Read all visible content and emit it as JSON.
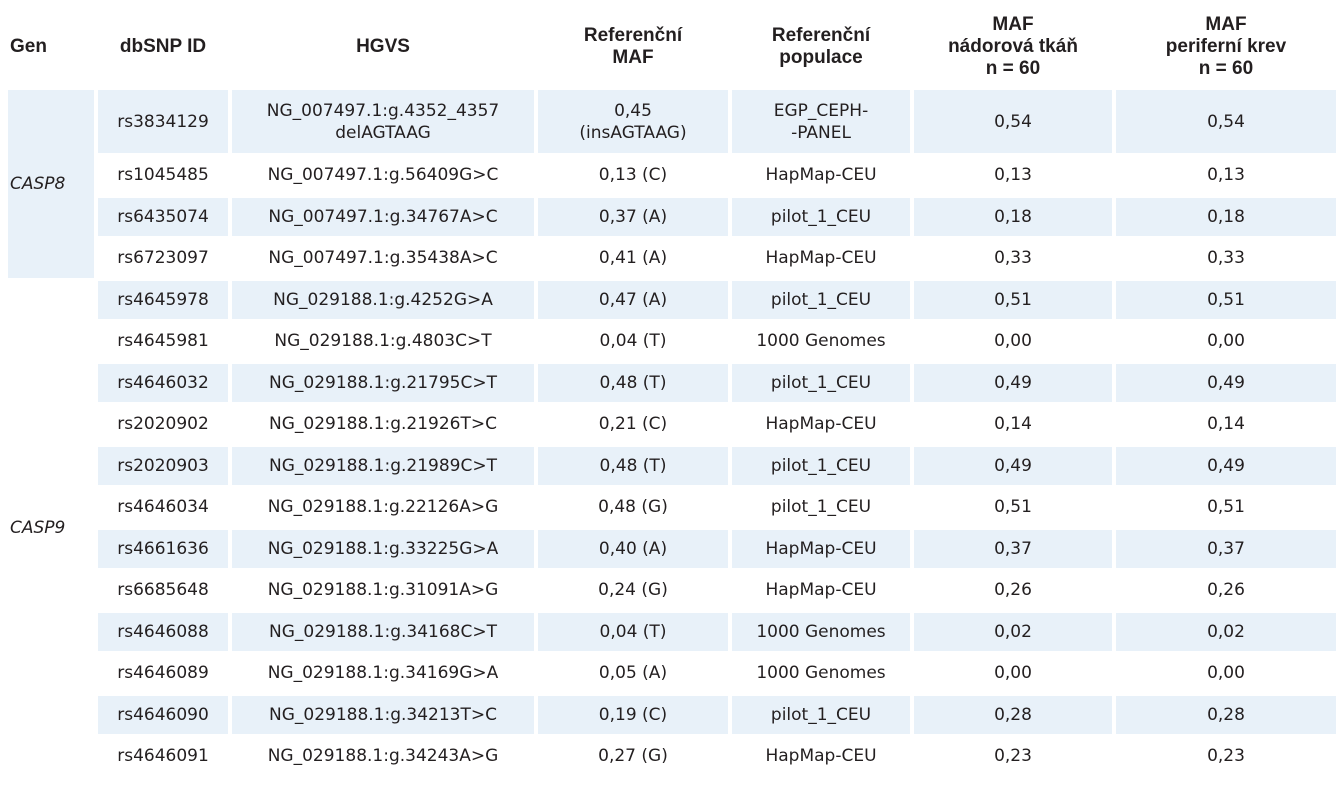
{
  "table": {
    "headers": {
      "gen": "Gen",
      "dbsnp": "dbSNP ID",
      "hgvs": "HGVS",
      "ref_maf": "Referenční\nMAF",
      "ref_pop": "Referenční\npopulace",
      "maf_tumor": "MAF\nnádorová tkáň\nn = 60",
      "maf_blood": "MAF\nperiferní krev\nn = 60"
    },
    "genes": [
      {
        "name": "CASP8",
        "rows": [
          {
            "dbsnp": "rs3834129",
            "hgvs": "NG_007497.1:g.4352_4357\ndelAGTAAG",
            "ref_maf": "0,45\n(insAGTAAG)",
            "ref_pop": "EGP_CEPH-\n-PANEL",
            "maf_tumor": "0,54",
            "maf_blood": "0,54"
          },
          {
            "dbsnp": "rs1045485",
            "hgvs": "NG_007497.1:g.56409G>C",
            "ref_maf": "0,13 (C)",
            "ref_pop": "HapMap-CEU",
            "maf_tumor": "0,13",
            "maf_blood": "0,13"
          },
          {
            "dbsnp": "rs6435074",
            "hgvs": "NG_007497.1:g.34767A>C",
            "ref_maf": "0,37 (A)",
            "ref_pop": "pilot_1_CEU",
            "maf_tumor": "0,18",
            "maf_blood": "0,18"
          },
          {
            "dbsnp": "rs6723097",
            "hgvs": "NG_007497.1:g.35438A>C",
            "ref_maf": "0,41 (A)",
            "ref_pop": "HapMap-CEU",
            "maf_tumor": "0,33",
            "maf_blood": "0,33"
          }
        ]
      },
      {
        "name": "CASP9",
        "rows": [
          {
            "dbsnp": "rs4645978",
            "hgvs": "NG_029188.1:g.4252G>A",
            "ref_maf": "0,47 (A)",
            "ref_pop": "pilot_1_CEU",
            "maf_tumor": "0,51",
            "maf_blood": "0,51"
          },
          {
            "dbsnp": "rs4645981",
            "hgvs": "NG_029188.1:g.4803C>T",
            "ref_maf": "0,04 (T)",
            "ref_pop": "1000 Genomes",
            "maf_tumor": "0,00",
            "maf_blood": "0,00"
          },
          {
            "dbsnp": "rs4646032",
            "hgvs": "NG_029188.1:g.21795C>T",
            "ref_maf": "0,48 (T)",
            "ref_pop": "pilot_1_CEU",
            "maf_tumor": "0,49",
            "maf_blood": "0,49"
          },
          {
            "dbsnp": "rs2020902",
            "hgvs": "NG_029188.1:g.21926T>C",
            "ref_maf": "0,21 (C)",
            "ref_pop": "HapMap-CEU",
            "maf_tumor": "0,14",
            "maf_blood": "0,14"
          },
          {
            "dbsnp": "rs2020903",
            "hgvs": "NG_029188.1:g.21989C>T",
            "ref_maf": "0,48 (T)",
            "ref_pop": "pilot_1_CEU",
            "maf_tumor": "0,49",
            "maf_blood": "0,49"
          },
          {
            "dbsnp": "rs4646034",
            "hgvs": "NG_029188.1:g.22126A>G",
            "ref_maf": "0,48 (G)",
            "ref_pop": "pilot_1_CEU",
            "maf_tumor": "0,51",
            "maf_blood": "0,51"
          },
          {
            "dbsnp": "rs4661636",
            "hgvs": "NG_029188.1:g.33225G>A",
            "ref_maf": "0,40 (A)",
            "ref_pop": "HapMap-CEU",
            "maf_tumor": "0,37",
            "maf_blood": "0,37"
          },
          {
            "dbsnp": "rs6685648",
            "hgvs": "NG_029188.1:g.31091A>G",
            "ref_maf": "0,24 (G)",
            "ref_pop": "HapMap-CEU",
            "maf_tumor": "0,26",
            "maf_blood": "0,26"
          },
          {
            "dbsnp": "rs4646088",
            "hgvs": "NG_029188.1:g.34168C>T",
            "ref_maf": "0,04 (T)",
            "ref_pop": "1000 Genomes",
            "maf_tumor": "0,02",
            "maf_blood": "0,02"
          },
          {
            "dbsnp": "rs4646089",
            "hgvs": "NG_029188.1:g.34169G>A",
            "ref_maf": "0,05 (A)",
            "ref_pop": "1000 Genomes",
            "maf_tumor": "0,00",
            "maf_blood": "0,00"
          },
          {
            "dbsnp": "rs4646090",
            "hgvs": "NG_029188.1:g.34213T>C",
            "ref_maf": "0,19 (C)",
            "ref_pop": "pilot_1_CEU",
            "maf_tumor": "0,28",
            "maf_blood": "0,28"
          },
          {
            "dbsnp": "rs4646091",
            "hgvs": "NG_029188.1:g.34243A>G",
            "ref_maf": "0,27 (G)",
            "ref_pop": "HapMap-CEU",
            "maf_tumor": "0,23",
            "maf_blood": "0,23"
          }
        ]
      }
    ],
    "colors": {
      "row_shade": "#e8f1f9",
      "text": "#231f20"
    }
  }
}
